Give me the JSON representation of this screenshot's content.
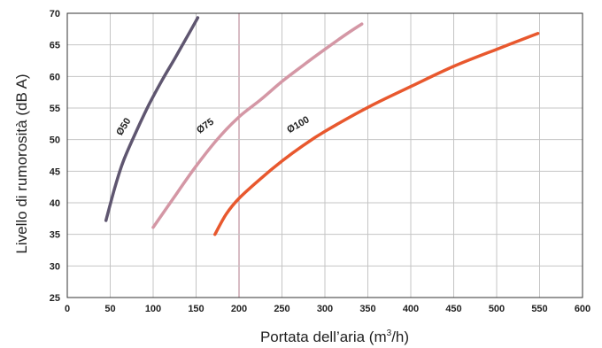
{
  "chart_data": {
    "type": "line",
    "title": "",
    "xlabel_main": "Portata dell’aria (m",
    "xlabel_sup": "3",
    "xlabel_tail": "/h)",
    "ylabel": "Livello di rumorosità (dB A)",
    "xlim": [
      0,
      600
    ],
    "ylim": [
      25,
      70
    ],
    "x_ticks": [
      "0",
      "50",
      "100",
      "150",
      "200",
      "250",
      "300",
      "350",
      "400",
      "450",
      "500",
      "550",
      "600"
    ],
    "y_ticks": [
      "25",
      "30",
      "35",
      "40",
      "45",
      "50",
      "55",
      "60",
      "65",
      "70"
    ],
    "grid": true,
    "highlight_vline": 200,
    "series": [
      {
        "name": "Ø50",
        "color": "#5f5670",
        "points": [
          [
            45,
            37.2
          ],
          [
            55,
            42.2
          ],
          [
            65,
            46.5
          ],
          [
            80,
            51.2
          ],
          [
            95,
            55.5
          ],
          [
            110,
            59.3
          ],
          [
            125,
            62.8
          ],
          [
            140,
            66.4
          ],
          [
            152,
            69.3
          ]
        ]
      },
      {
        "name": "Ø75",
        "color": "#d497a5",
        "points": [
          [
            100,
            36.1
          ],
          [
            125,
            41
          ],
          [
            150,
            45.8
          ],
          [
            175,
            50.1
          ],
          [
            200,
            53.6
          ],
          [
            225,
            56.3
          ],
          [
            250,
            59.2
          ],
          [
            275,
            61.8
          ],
          [
            300,
            64.3
          ],
          [
            325,
            66.7
          ],
          [
            343,
            68.3
          ]
        ]
      },
      {
        "name": "Ø100",
        "color": "#e8582e",
        "points": [
          [
            172,
            35
          ],
          [
            185,
            38.2
          ],
          [
            200,
            40.7
          ],
          [
            225,
            43.8
          ],
          [
            250,
            46.6
          ],
          [
            275,
            49.1
          ],
          [
            300,
            51.3
          ],
          [
            350,
            55.1
          ],
          [
            400,
            58.4
          ],
          [
            450,
            61.6
          ],
          [
            500,
            64.3
          ],
          [
            548,
            66.8
          ]
        ]
      }
    ]
  }
}
